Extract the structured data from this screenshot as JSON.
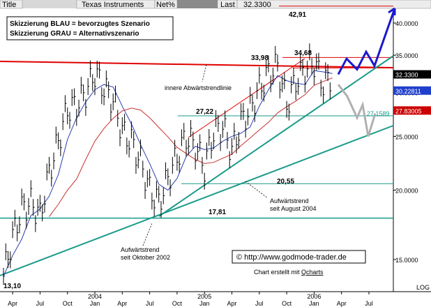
{
  "header": {
    "title_tab": "Title",
    "symbol": "Texas Instruments",
    "mode": "Net%",
    "last_label": "Last",
    "last_value": "32.3300"
  },
  "legend": {
    "line1": "Skizzierung BLAU = bevorzugtes Szenario",
    "line2": "Skizzierung GRAU = Alternativszenario"
  },
  "annotations": {
    "level_4291": "42,91",
    "level_3398": "33,98",
    "level_3468": "34,68",
    "level_2722": "27,22",
    "level_2055": "20,55",
    "level_1781": "17,81",
    "level_1310": "13,10",
    "inner_downtrend": "innere Abwärtstrendlinie",
    "uptrend_aug_1": "Aufwärtstrend",
    "uptrend_aug_2": "seit August 2004",
    "uptrend_oct_1": "Aufwärtstrend",
    "uptrend_oct_2": "seit Oktober 2002",
    "copyright": "© http://www.godmode-trader.de",
    "credit_prefix": "Chart erstellt mit ",
    "credit_link": "Qcharts",
    "log": "LOG",
    "val_27": "27.1589"
  },
  "price_tags": [
    {
      "text": "32.3300",
      "bg": "#000000"
    },
    {
      "text": "30.22811",
      "bg": "#1f3fcc"
    },
    {
      "text": "27.83005",
      "bg": "#cc0000"
    }
  ],
  "colors": {
    "price": "#000000",
    "ma_blue": "#2a3fb0",
    "ma_red": "#c83030",
    "resistance": "#e00000",
    "trend_teal": "#1a9a8a",
    "scenario_blue": "#1a1acc",
    "scenario_gray": "#b0b0b0"
  },
  "chart_data": {
    "type": "ohlc",
    "y_scale": "log",
    "ylim": [
      12.5,
      45
    ],
    "y_ticks": [
      "40.0000",
      "35.0000",
      "30.0000",
      "25.0000",
      "20.0000",
      "15.0000"
    ],
    "x_ticks": [
      "Apr",
      "Jul",
      "Oct",
      "2004 Jan",
      "Apr",
      "Jul",
      "Oct",
      "2005 Jan",
      "Apr",
      "Jul",
      "Oct",
      "2006 Jan",
      "Apr",
      "Jul"
    ],
    "price_series": [
      {
        "date": "2003-03",
        "close": 14.0
      },
      {
        "date": "2003-04",
        "close": 16.5
      },
      {
        "date": "2003-05",
        "close": 18.5
      },
      {
        "date": "2003-06",
        "close": 19.0
      },
      {
        "date": "2003-07",
        "close": 18.0
      },
      {
        "date": "2003-08",
        "close": 21.5
      },
      {
        "date": "2003-09",
        "close": 24.5
      },
      {
        "date": "2003-10",
        "close": 28.0
      },
      {
        "date": "2003-11",
        "close": 28.5
      },
      {
        "date": "2003-12",
        "close": 30.0
      },
      {
        "date": "2004-01",
        "close": 32.5
      },
      {
        "date": "2004-02",
        "close": 30.5
      },
      {
        "date": "2004-03",
        "close": 29.0
      },
      {
        "date": "2004-04",
        "close": 25.5
      },
      {
        "date": "2004-05",
        "close": 24.5
      },
      {
        "date": "2004-06",
        "close": 22.5
      },
      {
        "date": "2004-07",
        "close": 20.0
      },
      {
        "date": "2004-08",
        "close": 19.0
      },
      {
        "date": "2004-09",
        "close": 21.0
      },
      {
        "date": "2004-10",
        "close": 23.0
      },
      {
        "date": "2004-11",
        "close": 25.0
      },
      {
        "date": "2004-12",
        "close": 24.0
      },
      {
        "date": "2005-01",
        "close": 22.0
      },
      {
        "date": "2005-02",
        "close": 25.5
      },
      {
        "date": "2005-03",
        "close": 26.0
      },
      {
        "date": "2005-04",
        "close": 23.5
      },
      {
        "date": "2005-05",
        "close": 26.5
      },
      {
        "date": "2005-06",
        "close": 28.0
      },
      {
        "date": "2005-07",
        "close": 30.5
      },
      {
        "date": "2005-08",
        "close": 32.5
      },
      {
        "date": "2005-09",
        "close": 33.5
      },
      {
        "date": "2005-10",
        "close": 28.5
      },
      {
        "date": "2005-11",
        "close": 31.5
      },
      {
        "date": "2005-12",
        "close": 33.0
      },
      {
        "date": "2006-01",
        "close": 34.0
      },
      {
        "date": "2006-02",
        "close": 31.0
      },
      {
        "date": "2006-03",
        "close": 32.33
      }
    ],
    "horizontal_levels": [
      42.91,
      34.68,
      33.98,
      27.22,
      20.55,
      17.81
    ],
    "scenario_blue": [
      32.33,
      34.5,
      33.0,
      35.5,
      33.5,
      42.5
    ],
    "scenario_gray": [
      31.0,
      29.5,
      27.0,
      28.5,
      25.0,
      27.5
    ]
  }
}
